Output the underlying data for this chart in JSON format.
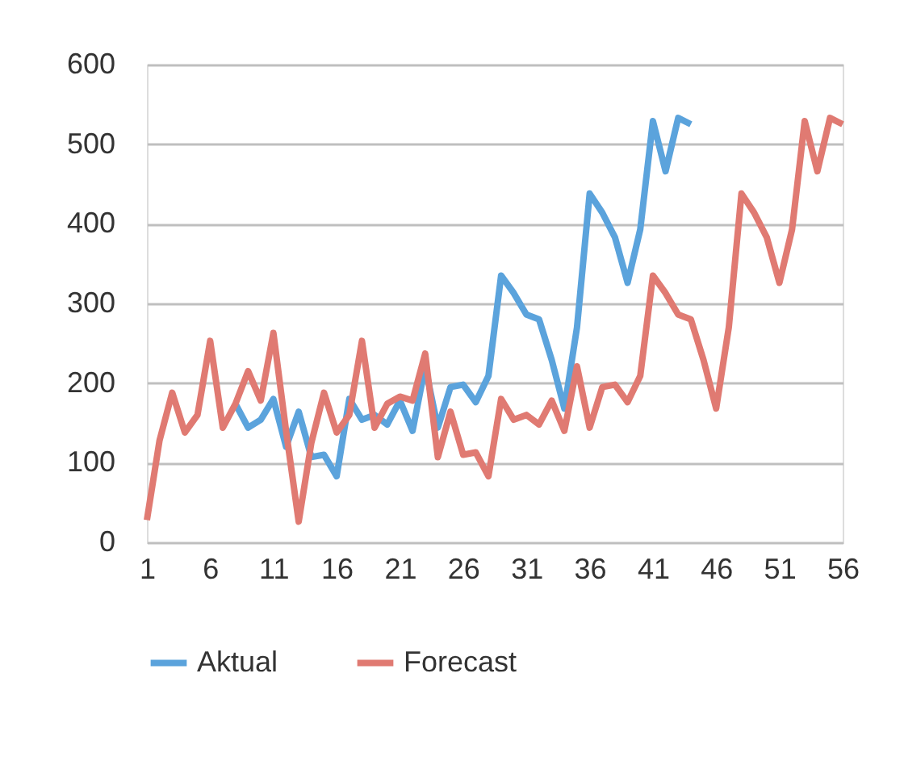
{
  "chart_data": {
    "type": "line",
    "x": [
      1,
      2,
      3,
      4,
      5,
      6,
      7,
      8,
      9,
      10,
      11,
      12,
      13,
      14,
      15,
      16,
      17,
      18,
      19,
      20,
      21,
      22,
      23,
      24,
      25,
      26,
      27,
      28,
      29,
      30,
      31,
      32,
      33,
      34,
      35,
      36,
      37,
      38,
      39,
      40,
      41,
      42,
      43,
      44,
      45,
      46,
      47,
      48,
      49,
      50,
      51,
      52,
      53,
      54,
      55,
      56
    ],
    "series": [
      {
        "name": "Aktual",
        "color": "#5ba3dc",
        "values": [
          null,
          null,
          null,
          null,
          null,
          null,
          null,
          174,
          144,
          154,
          180,
          120,
          164,
          107,
          110,
          83,
          180,
          154,
          160,
          148,
          178,
          140,
          221,
          144,
          195,
          198,
          176,
          209,
          335,
          313,
          286,
          280,
          229,
          168,
          270,
          438,
          414,
          383,
          326,
          393,
          529,
          466,
          533,
          525,
          null,
          null,
          null,
          null,
          null,
          null,
          null,
          null,
          null,
          null,
          null,
          null
        ]
      },
      {
        "name": "Forecast",
        "color": "#e07a72",
        "values": [
          28,
          128,
          188,
          138,
          160,
          253,
          144,
          174,
          215,
          178,
          263,
          140,
          26,
          125,
          188,
          138,
          160,
          253,
          144,
          174,
          183,
          178,
          237,
          107,
          164,
          110,
          113,
          83,
          180,
          154,
          160,
          148,
          178,
          140,
          221,
          144,
          195,
          198,
          176,
          209,
          335,
          313,
          286,
          280,
          229,
          168,
          270,
          438,
          414,
          383,
          326,
          393,
          529,
          466,
          533,
          525
        ]
      }
    ],
    "xlim": [
      1,
      56
    ],
    "xticks": [
      1,
      6,
      11,
      16,
      21,
      26,
      31,
      36,
      41,
      46,
      51,
      56
    ],
    "ylim": [
      0,
      600
    ],
    "yticks": [
      0,
      100,
      200,
      300,
      400,
      500,
      600
    ],
    "grid": "y",
    "legend": "bottom",
    "marker": "none",
    "line_style": "solid"
  }
}
